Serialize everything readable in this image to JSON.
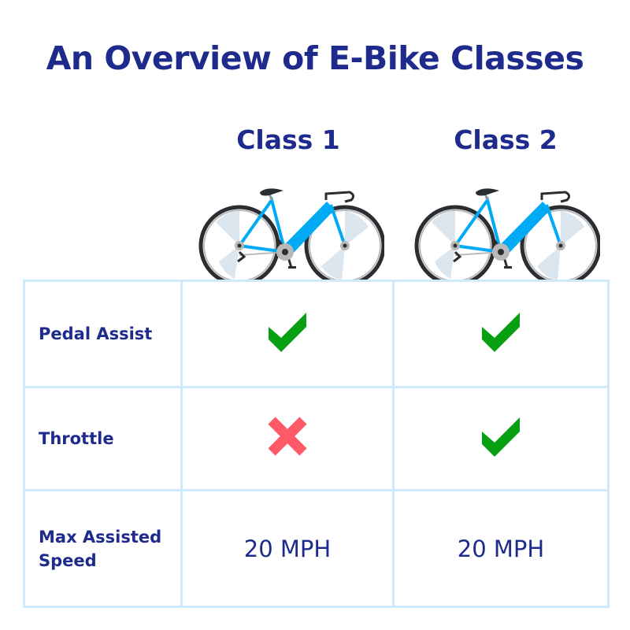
{
  "title": "An Overview of E-Bike Classes",
  "columns": [
    {
      "label": "Class 1",
      "image": "e-bike-illustration"
    },
    {
      "label": "Class 2",
      "image": "e-bike-illustration"
    }
  ],
  "rows": [
    {
      "label": "Pedal Assist",
      "values": [
        {
          "icon": "check-icon"
        },
        {
          "icon": "check-icon"
        }
      ]
    },
    {
      "label": "Throttle",
      "values": [
        {
          "icon": "x-icon"
        },
        {
          "icon": "check-icon"
        }
      ]
    },
    {
      "label": "Max Assisted Speed",
      "values": [
        {
          "text": "20 MPH"
        },
        {
          "text": "20 MPH"
        }
      ]
    }
  ],
  "colors": {
    "text": "#1e2b8c",
    "check": "#06a012",
    "cross": "#ff5a67",
    "grid": "#cfeafc",
    "bike_frame": "#00aaf5"
  }
}
